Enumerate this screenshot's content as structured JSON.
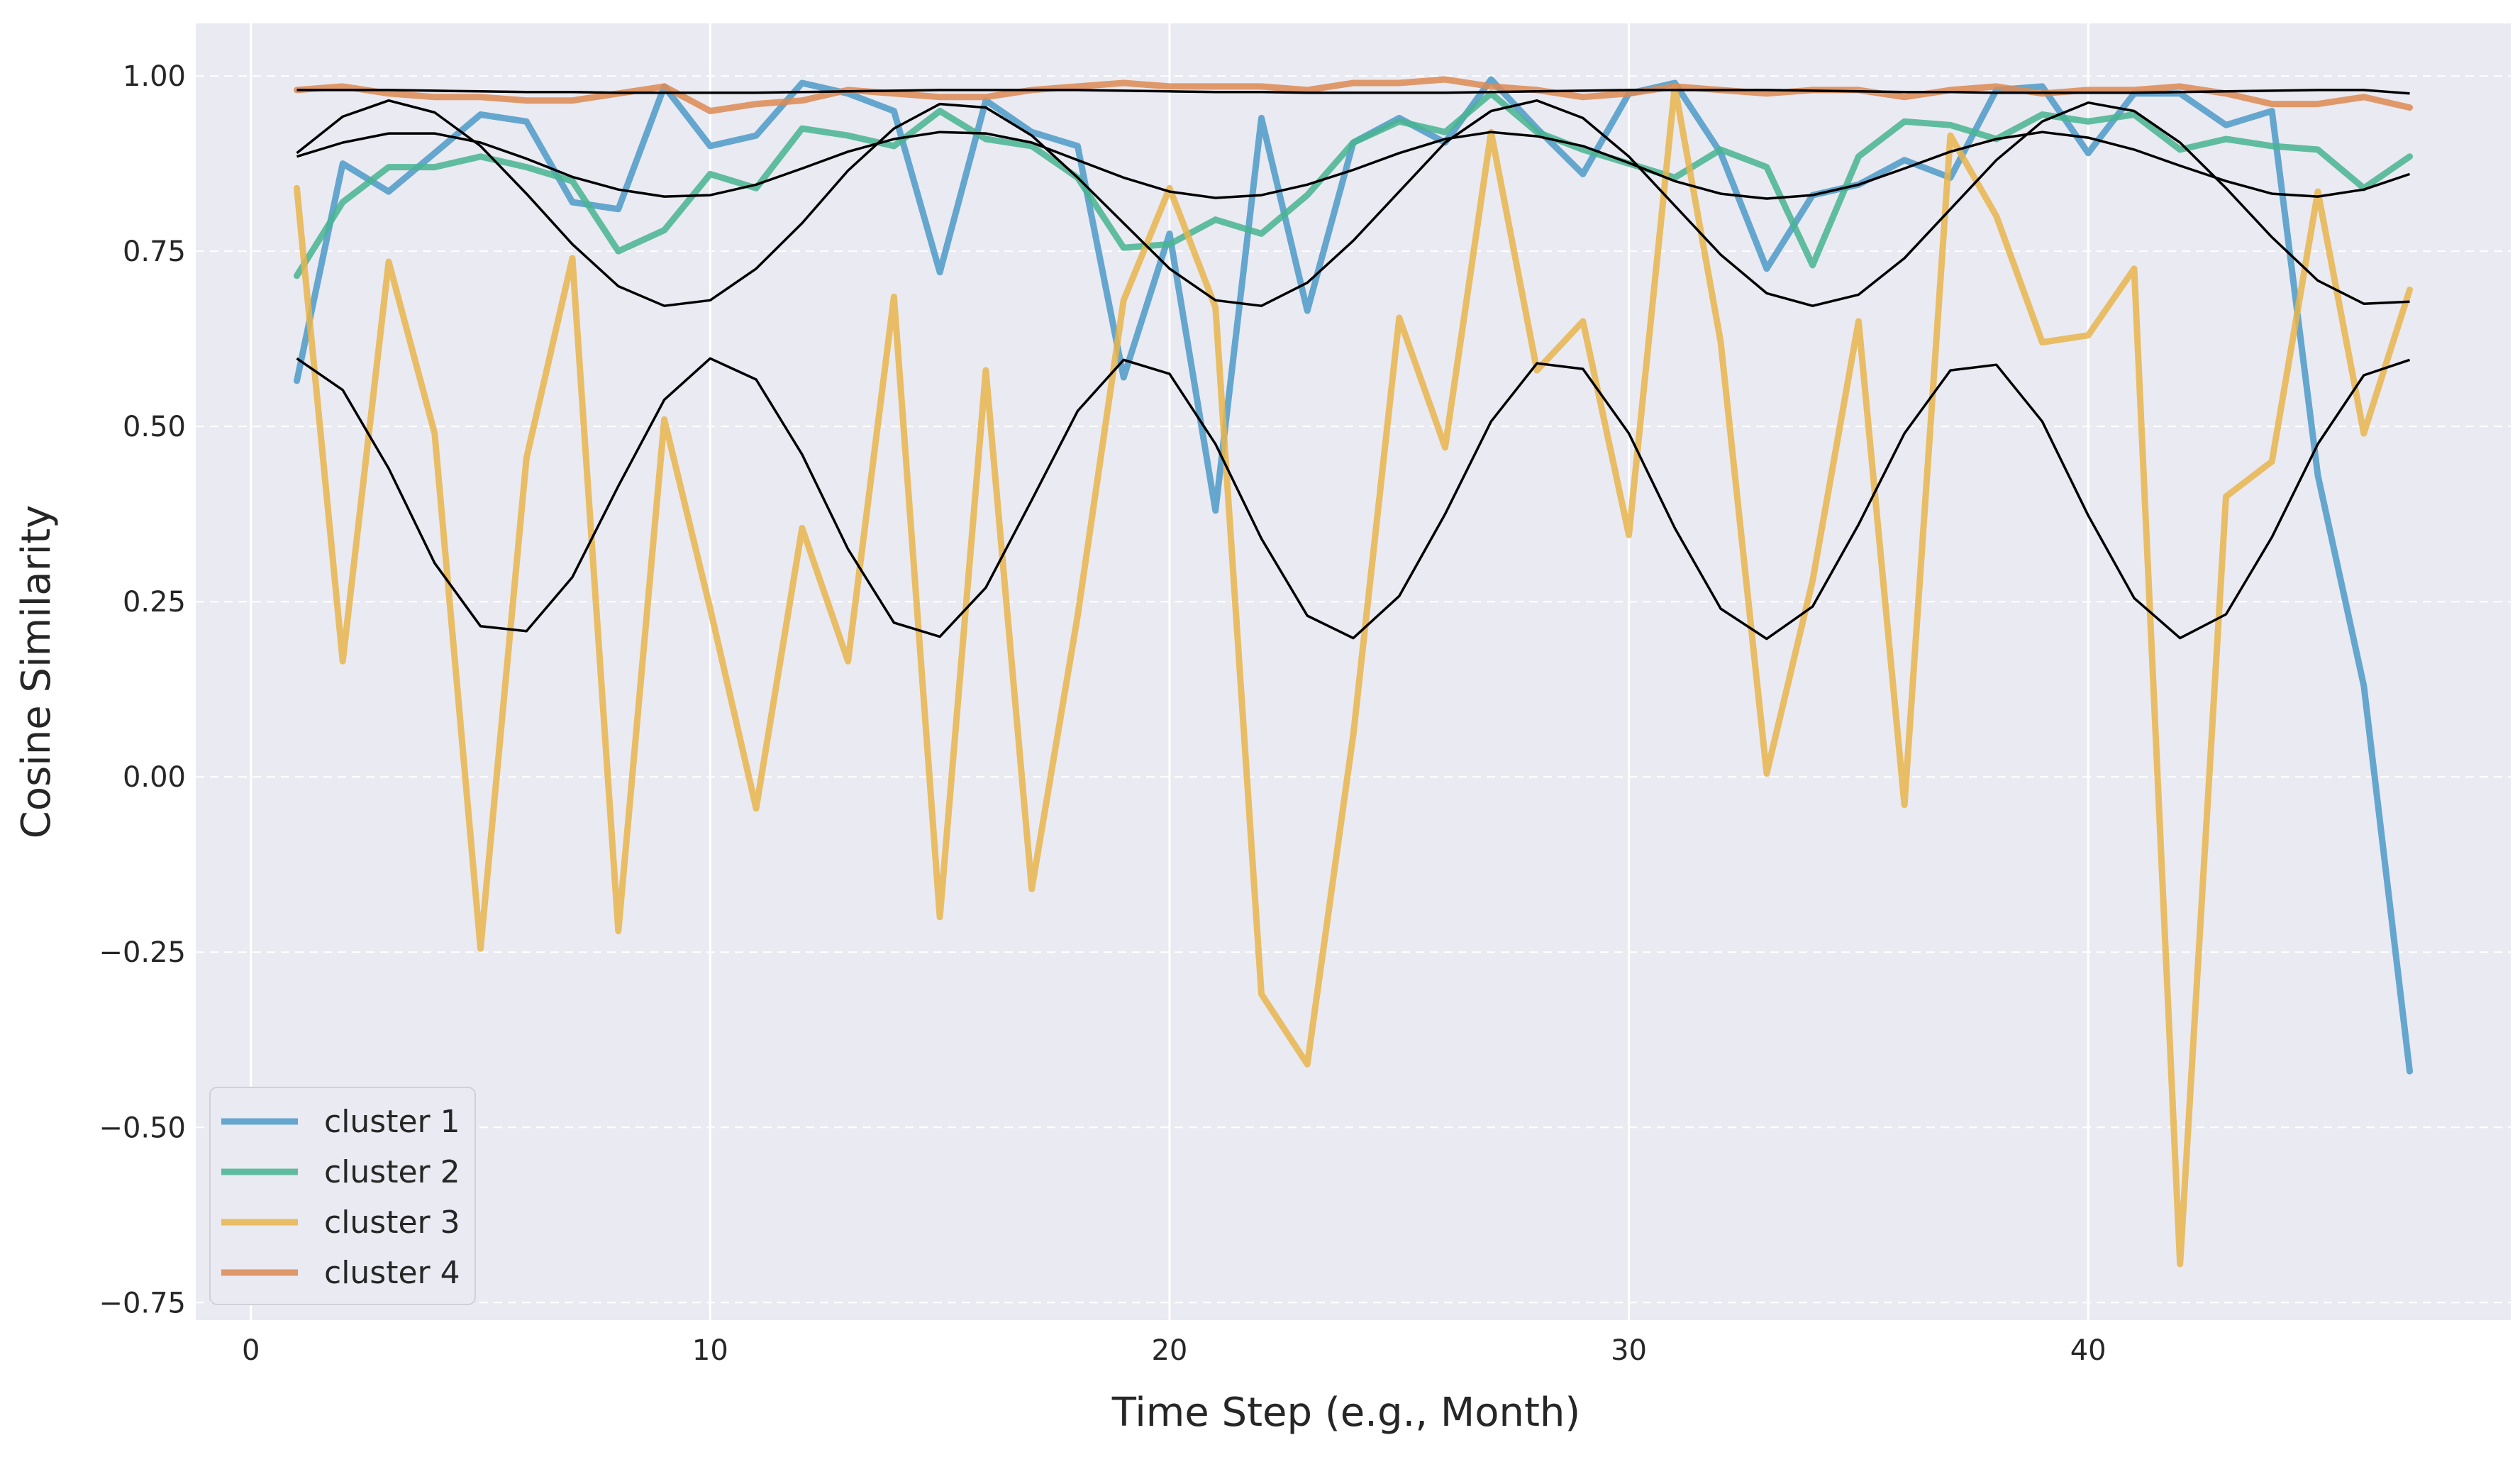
{
  "chart_data": {
    "type": "line",
    "title": "",
    "xlabel": "Time Step (e.g., Month)",
    "ylabel": "Cosine Similarity",
    "xlim": [
      -1.2,
      49.2
    ],
    "ylim": [
      -0.775,
      1.075
    ],
    "xticks": [
      0,
      10,
      20,
      30,
      40
    ],
    "yticks": [
      -0.75,
      -0.5,
      -0.25,
      0.0,
      0.25,
      0.5,
      0.75,
      1.0
    ],
    "xtick_labels": [
      "0",
      "10",
      "20",
      "30",
      "40"
    ],
    "ytick_labels": [
      "−0.75",
      "−0.50",
      "−0.25",
      "0.00",
      "0.25",
      "0.50",
      "0.75",
      "1.00"
    ],
    "grid": "on",
    "legend_position": "lower-left",
    "background_color": "#eaeaf2",
    "x": [
      1,
      2,
      3,
      4,
      5,
      6,
      7,
      8,
      9,
      10,
      11,
      12,
      13,
      14,
      15,
      16,
      17,
      18,
      19,
      20,
      21,
      22,
      23,
      24,
      25,
      26,
      27,
      28,
      29,
      30,
      31,
      32,
      33,
      34,
      35,
      36,
      37,
      38,
      39,
      40,
      41,
      42,
      43,
      44,
      45,
      46,
      47
    ],
    "series": [
      {
        "name": "cluster 1",
        "color": "#4c9ac8",
        "values": [
          0.565,
          0.875,
          0.835,
          0.89,
          0.945,
          0.935,
          0.82,
          0.81,
          0.985,
          0.9,
          0.915,
          0.99,
          0.975,
          0.95,
          0.72,
          0.965,
          0.92,
          0.9,
          0.57,
          0.775,
          0.38,
          0.94,
          0.665,
          0.905,
          0.94,
          0.905,
          0.995,
          0.925,
          0.86,
          0.975,
          0.99,
          0.89,
          0.725,
          0.83,
          0.845,
          0.88,
          0.855,
          0.98,
          0.985,
          0.89,
          0.975,
          0.975,
          0.93,
          0.95,
          0.43,
          0.13,
          -0.42
        ]
      },
      {
        "name": "cluster 2",
        "color": "#48b491",
        "values": [
          0.715,
          0.82,
          0.87,
          0.87,
          0.885,
          0.87,
          0.85,
          0.75,
          0.78,
          0.86,
          0.84,
          0.925,
          0.915,
          0.9,
          0.95,
          0.91,
          0.9,
          0.855,
          0.755,
          0.76,
          0.795,
          0.775,
          0.83,
          0.905,
          0.935,
          0.92,
          0.975,
          0.92,
          0.895,
          0.875,
          0.855,
          0.895,
          0.87,
          0.73,
          0.885,
          0.935,
          0.93,
          0.91,
          0.945,
          0.935,
          0.945,
          0.895,
          0.91,
          0.9,
          0.895,
          0.84,
          0.885
        ]
      },
      {
        "name": "cluster 3",
        "color": "#e7b54c",
        "values": [
          0.84,
          0.165,
          0.735,
          0.49,
          -0.245,
          0.455,
          0.74,
          -0.22,
          0.51,
          0.24,
          -0.045,
          0.355,
          0.165,
          0.685,
          -0.2,
          0.58,
          -0.16,
          0.23,
          0.68,
          0.84,
          0.67,
          -0.31,
          -0.41,
          0.06,
          0.655,
          0.47,
          0.92,
          0.58,
          0.65,
          0.345,
          0.985,
          0.62,
          0.005,
          0.28,
          0.65,
          -0.04,
          0.915,
          0.8,
          0.62,
          0.63,
          0.725,
          -0.695,
          0.4,
          0.45,
          0.835,
          0.49,
          0.695
        ]
      },
      {
        "name": "cluster 4",
        "color": "#dd8a52",
        "values": [
          0.98,
          0.985,
          0.975,
          0.97,
          0.97,
          0.965,
          0.965,
          0.975,
          0.985,
          0.95,
          0.96,
          0.965,
          0.98,
          0.975,
          0.97,
          0.97,
          0.98,
          0.985,
          0.99,
          0.985,
          0.985,
          0.985,
          0.98,
          0.99,
          0.99,
          0.995,
          0.985,
          0.98,
          0.97,
          0.975,
          0.985,
          0.98,
          0.975,
          0.98,
          0.98,
          0.97,
          0.98,
          0.985,
          0.975,
          0.98,
          0.98,
          0.985,
          0.975,
          0.96,
          0.96,
          0.97,
          0.955
        ]
      }
    ],
    "reference_series": [
      {
        "color": "#000000",
        "values": [
          0.98,
          0.98,
          0.98,
          0.979,
          0.978,
          0.977,
          0.977,
          0.976,
          0.976,
          0.976,
          0.976,
          0.977,
          0.978,
          0.979,
          0.98,
          0.98,
          0.98,
          0.98,
          0.979,
          0.978,
          0.977,
          0.977,
          0.976,
          0.976,
          0.976,
          0.976,
          0.977,
          0.978,
          0.979,
          0.98,
          0.98,
          0.98,
          0.98,
          0.979,
          0.978,
          0.977,
          0.977,
          0.976,
          0.976,
          0.976,
          0.976,
          0.977,
          0.978,
          0.979,
          0.98,
          0.98,
          0.975
        ]
      },
      {
        "color": "#000000",
        "values": [
          0.885,
          0.905,
          0.918,
          0.918,
          0.905,
          0.882,
          0.856,
          0.838,
          0.828,
          0.83,
          0.845,
          0.868,
          0.892,
          0.91,
          0.92,
          0.918,
          0.905,
          0.88,
          0.855,
          0.835,
          0.826,
          0.83,
          0.845,
          0.866,
          0.89,
          0.91,
          0.92,
          0.914,
          0.9,
          0.876,
          0.85,
          0.832,
          0.825,
          0.83,
          0.845,
          0.868,
          0.892,
          0.91,
          0.92,
          0.912,
          0.895,
          0.872,
          0.85,
          0.832,
          0.828,
          0.838,
          0.86
        ]
      },
      {
        "color": "#000000",
        "values": [
          0.89,
          0.942,
          0.965,
          0.948,
          0.9,
          0.832,
          0.76,
          0.7,
          0.672,
          0.68,
          0.725,
          0.79,
          0.865,
          0.925,
          0.96,
          0.955,
          0.915,
          0.855,
          0.79,
          0.725,
          0.68,
          0.672,
          0.705,
          0.765,
          0.835,
          0.905,
          0.95,
          0.965,
          0.94,
          0.885,
          0.815,
          0.745,
          0.69,
          0.672,
          0.688,
          0.74,
          0.81,
          0.88,
          0.935,
          0.962,
          0.95,
          0.905,
          0.84,
          0.77,
          0.708,
          0.675,
          0.678
        ]
      },
      {
        "color": "#000000",
        "values": [
          0.597,
          0.552,
          0.44,
          0.305,
          0.215,
          0.208,
          0.285,
          0.415,
          0.538,
          0.597,
          0.567,
          0.46,
          0.325,
          0.22,
          0.2,
          0.27,
          0.395,
          0.522,
          0.595,
          0.575,
          0.475,
          0.34,
          0.23,
          0.198,
          0.258,
          0.375,
          0.507,
          0.59,
          0.582,
          0.49,
          0.355,
          0.24,
          0.197,
          0.243,
          0.36,
          0.49,
          0.58,
          0.588,
          0.507,
          0.373,
          0.255,
          0.198,
          0.232,
          0.342,
          0.475,
          0.573,
          0.595
        ]
      }
    ]
  }
}
